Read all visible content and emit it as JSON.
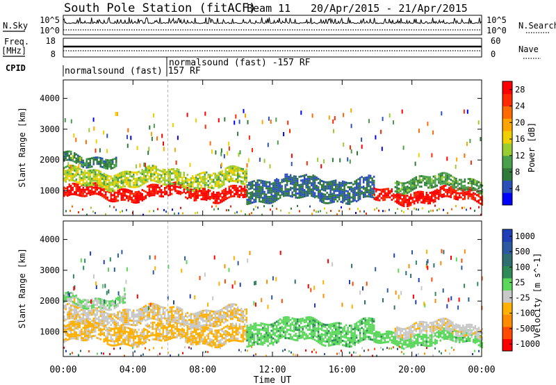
{
  "header": {
    "title": "South Pole Station (fitACF)",
    "beam": "Beam 11",
    "date_range": "20/Apr/2015 - 21/Apr/2015"
  },
  "strip": {
    "nsky_label": "N.Sky",
    "nsearch_label": "N.Search",
    "freq_label": "Freq.",
    "freq_unit": "[MHz]",
    "nave_label": "Nave",
    "cpid_label": "CPID",
    "nsky_ticks": [
      "10^5",
      "10^0"
    ],
    "nsearch_ticks": [
      "10^5",
      "10^0"
    ],
    "freq_ticks": [
      "18",
      "8"
    ],
    "nave_ticks": [
      "60",
      "0"
    ],
    "cpid_segments": [
      {
        "label": "normalsound (fast) 157 RF",
        "start_hour": 0
      },
      {
        "label": "normalsound (fast) -157 RF",
        "start_hour": 6.0
      }
    ]
  },
  "chart_data": [
    {
      "type": "heatmap",
      "title": "",
      "xlabel": "",
      "ylabel": "Slant Range [km]",
      "x_ticks": [
        "00:00",
        "04:00",
        "08:00",
        "12:00",
        "16:00",
        "20:00",
        "00:00"
      ],
      "xlim": [
        0,
        24
      ],
      "ylim": [
        200,
        4600
      ],
      "y_ticks": [
        1000,
        2000,
        3000,
        4000
      ],
      "colorbar": {
        "label": "Power [dB]",
        "ticks": [
          4,
          8,
          12,
          16,
          20,
          24,
          28
        ],
        "range": [
          0,
          30
        ],
        "colors": [
          "#0000ff",
          "#2a4fb8",
          "#2f7a3a",
          "#4aa04a",
          "#9acd32",
          "#f0d000",
          "#ffa500",
          "#ff6a00",
          "#ff2a00",
          "#ff0000"
        ]
      },
      "echo_bands": [
        {
          "start_hour": 0.0,
          "end_hour": 10.5,
          "center_km": 1000,
          "halfwidth_km": 200,
          "level": 28
        },
        {
          "start_hour": 0.0,
          "end_hour": 10.5,
          "center_km": 1450,
          "halfwidth_km": 250,
          "level": 14
        },
        {
          "start_hour": 0.0,
          "end_hour": 3.0,
          "center_km": 2050,
          "halfwidth_km": 150,
          "level": 8
        },
        {
          "start_hour": 10.5,
          "end_hour": 17.8,
          "center_km": 1100,
          "halfwidth_km": 350,
          "level": 6
        },
        {
          "start_hour": 17.8,
          "end_hour": 24.0,
          "center_km": 900,
          "halfwidth_km": 200,
          "level": 28
        },
        {
          "start_hour": 19.0,
          "end_hour": 24.0,
          "center_km": 1300,
          "halfwidth_km": 200,
          "level": 10
        }
      ]
    },
    {
      "type": "heatmap",
      "title": "",
      "xlabel": "Time UT",
      "ylabel": "Slant Range [km]",
      "x_ticks": [
        "00:00",
        "04:00",
        "08:00",
        "12:00",
        "16:00",
        "20:00",
        "00:00"
      ],
      "xlim": [
        0,
        24
      ],
      "ylim": [
        200,
        4600
      ],
      "y_ticks": [
        1000,
        2000,
        3000,
        4000
      ],
      "colorbar": {
        "label": "Velocity [m s^-1]",
        "ticks": [
          1000,
          500,
          100,
          25,
          -25,
          -100,
          -500,
          -1000
        ],
        "range": [
          -1200,
          1200
        ],
        "colors": [
          "#ff0000",
          "#ff4a00",
          "#ff8c00",
          "#ffb000",
          "#c8c8c8",
          "#5bd75b",
          "#2e8b57",
          "#2f6f6f",
          "#2c5aa0",
          "#1f3fb8"
        ]
      },
      "echo_bands": [
        {
          "start_hour": 0.0,
          "end_hour": 10.5,
          "center_km": 1000,
          "halfwidth_km": 300,
          "level": -300
        },
        {
          "start_hour": 0.0,
          "end_hour": 10.5,
          "center_km": 1550,
          "halfwidth_km": 250,
          "level": -200
        },
        {
          "start_hour": 0.0,
          "end_hour": 3.5,
          "center_km": 2050,
          "halfwidth_km": 150,
          "level": 0
        },
        {
          "start_hour": 10.5,
          "end_hour": 17.8,
          "center_km": 1050,
          "halfwidth_km": 350,
          "level": 150
        },
        {
          "start_hour": 17.8,
          "end_hour": 24.0,
          "center_km": 850,
          "halfwidth_km": 200,
          "level": 120
        },
        {
          "start_hour": 19.0,
          "end_hour": 24.0,
          "center_km": 1150,
          "halfwidth_km": 200,
          "level": -150
        }
      ]
    }
  ]
}
